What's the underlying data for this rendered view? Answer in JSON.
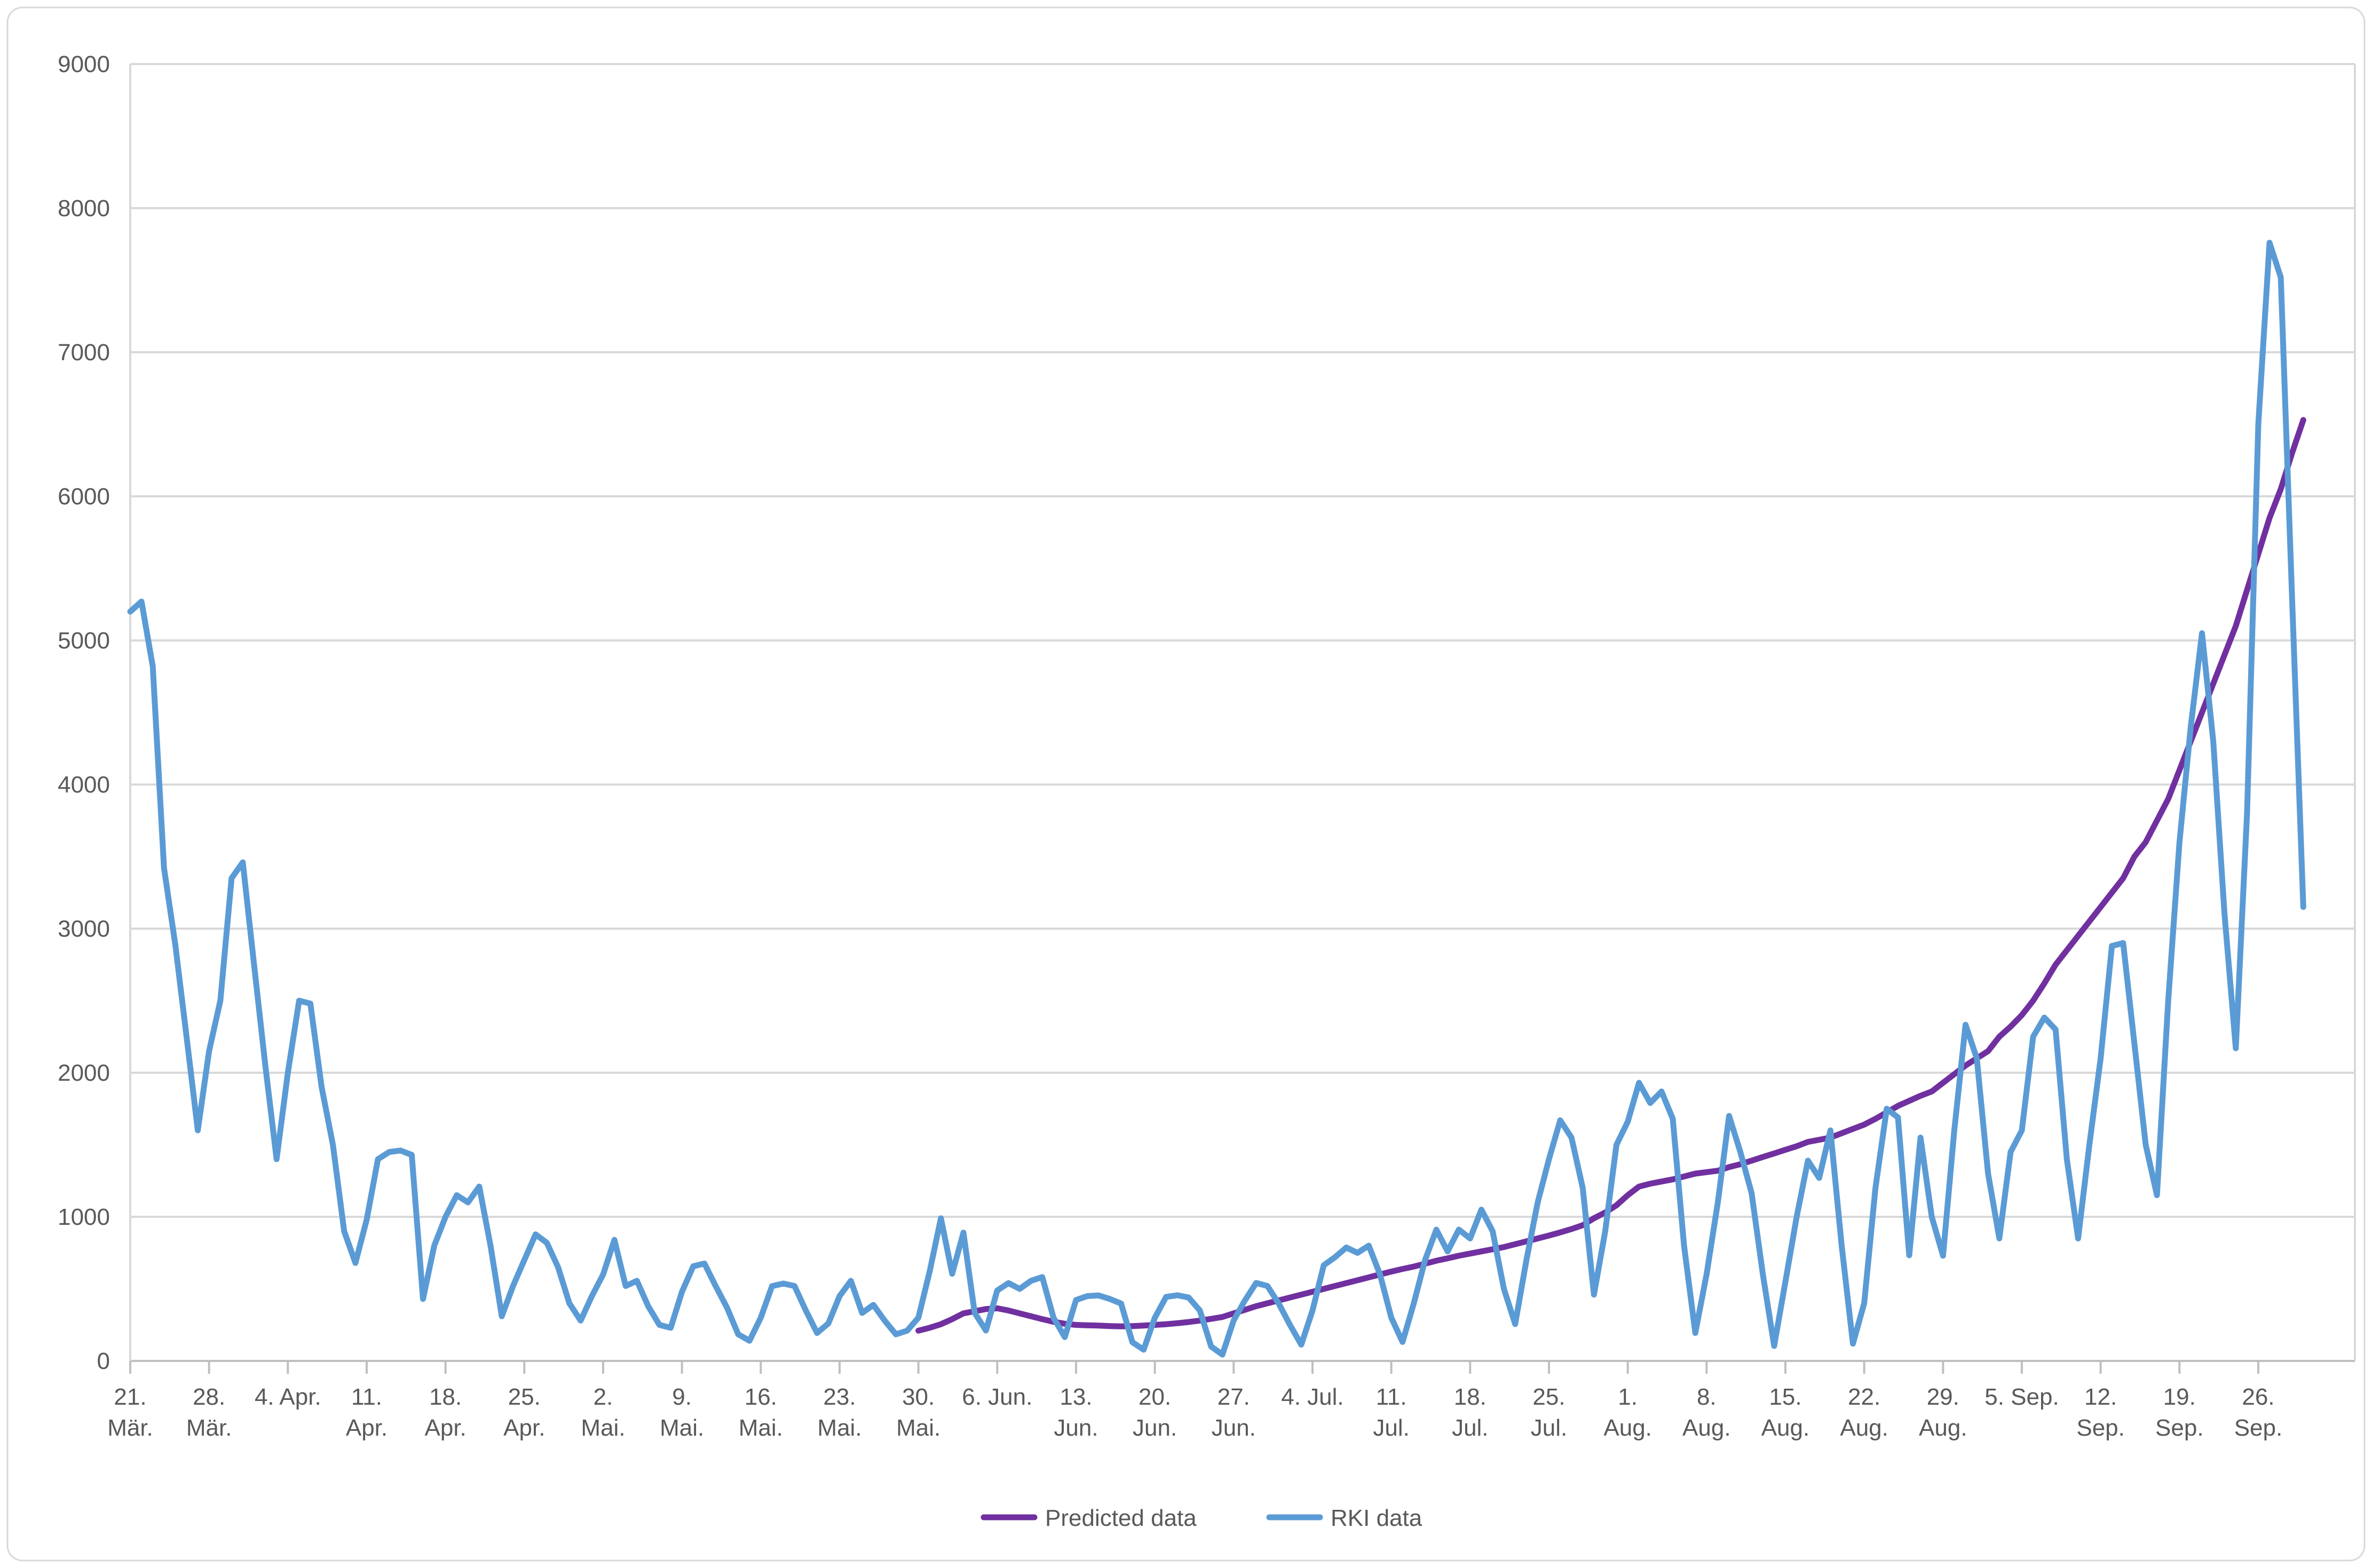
{
  "chart": {
    "background_color": "#FFFFFF",
    "border_color": "#D9D9D9",
    "gridline_color": "#D9D9D9",
    "axis_line_color": "#BFBFBF",
    "label_color": "#595959",
    "legend": [
      {
        "label": "Predicted data",
        "color": "#7030A0"
      },
      {
        "label": "RKI data",
        "color": "#5B9BD5"
      }
    ]
  },
  "chart_data": {
    "type": "line",
    "title": "",
    "xlabel": "",
    "ylabel": "",
    "ylim": [
      0,
      9000
    ],
    "y_ticks": [
      0,
      1000,
      2000,
      3000,
      4000,
      5000,
      6000,
      7000,
      8000,
      9000
    ],
    "grid": true,
    "legend_position": "bottom",
    "x_tick_interval_days": 7,
    "x_ticks": [
      {
        "l1": "21.",
        "l2": "Mär."
      },
      {
        "l1": "28.",
        "l2": "Mär."
      },
      {
        "l1": "4. Apr.",
        "l2": null
      },
      {
        "l1": "11.",
        "l2": "Apr."
      },
      {
        "l1": "18.",
        "l2": "Apr."
      },
      {
        "l1": "25.",
        "l2": "Apr."
      },
      {
        "l1": "2.",
        "l2": "Mai."
      },
      {
        "l1": "9.",
        "l2": "Mai."
      },
      {
        "l1": "16.",
        "l2": "Mai."
      },
      {
        "l1": "23.",
        "l2": "Mai."
      },
      {
        "l1": "30.",
        "l2": "Mai."
      },
      {
        "l1": "6. Jun.",
        "l2": null
      },
      {
        "l1": "13.",
        "l2": "Jun."
      },
      {
        "l1": "20.",
        "l2": "Jun."
      },
      {
        "l1": "27.",
        "l2": "Jun."
      },
      {
        "l1": "4. Jul.",
        "l2": null
      },
      {
        "l1": "11.",
        "l2": "Jul."
      },
      {
        "l1": "18.",
        "l2": "Jul."
      },
      {
        "l1": "25.",
        "l2": "Jul."
      },
      {
        "l1": "1.",
        "l2": "Aug."
      },
      {
        "l1": "8.",
        "l2": "Aug."
      },
      {
        "l1": "15.",
        "l2": "Aug."
      },
      {
        "l1": "22.",
        "l2": "Aug."
      },
      {
        "l1": "29.",
        "l2": "Aug."
      },
      {
        "l1": "5. Sep.",
        "l2": null
      },
      {
        "l1": "12.",
        "l2": "Sep."
      },
      {
        "l1": "19.",
        "l2": "Sep."
      },
      {
        "l1": "26.",
        "l2": "Sep."
      }
    ],
    "series": [
      {
        "name": "Predicted data",
        "color": "#7030A0",
        "values": [
          null,
          null,
          null,
          null,
          null,
          null,
          null,
          null,
          null,
          null,
          null,
          null,
          null,
          null,
          null,
          null,
          null,
          null,
          null,
          null,
          null,
          null,
          null,
          null,
          null,
          null,
          null,
          null,
          null,
          null,
          null,
          null,
          null,
          null,
          null,
          null,
          null,
          null,
          null,
          null,
          null,
          null,
          null,
          null,
          null,
          null,
          null,
          null,
          null,
          null,
          null,
          null,
          null,
          null,
          null,
          null,
          null,
          null,
          null,
          null,
          null,
          null,
          null,
          null,
          null,
          null,
          null,
          null,
          null,
          null,
          210,
          230,
          255,
          290,
          330,
          345,
          360,
          365,
          350,
          330,
          310,
          290,
          272,
          258,
          250,
          247,
          245,
          242,
          240,
          242,
          245,
          250,
          255,
          262,
          270,
          280,
          292,
          305,
          330,
          355,
          380,
          400,
          420,
          440,
          460,
          480,
          500,
          520,
          540,
          560,
          580,
          600,
          620,
          638,
          655,
          675,
          695,
          712,
          730,
          745,
          760,
          775,
          790,
          810,
          830,
          850,
          870,
          892,
          915,
          942,
          990,
          1030,
          1080,
          1150,
          1210,
          1230,
          1245,
          1260,
          1280,
          1300,
          1310,
          1320,
          1345,
          1365,
          1390,
          1415,
          1440,
          1465,
          1490,
          1520,
          1535,
          1550,
          1580,
          1610,
          1640,
          1680,
          1725,
          1770,
          1805,
          1840,
          1870,
          1930,
          1990,
          2050,
          2100,
          2150,
          2250,
          2320,
          2400,
          2500,
          2620,
          2750,
          2850,
          2950,
          3050,
          3150,
          3250,
          3350,
          3500,
          3600,
          3750,
          3900,
          4100,
          4300,
          4500,
          4700,
          4900,
          5100,
          5350,
          5600,
          5850,
          6050,
          6300,
          6530
        ]
      },
      {
        "name": "RKI data",
        "color": "#5B9BD5",
        "values": [
          5200,
          5270,
          4820,
          3420,
          2890,
          2250,
          1600,
          2150,
          2500,
          3350,
          3460,
          2750,
          2050,
          1400,
          2000,
          2500,
          2480,
          1900,
          1500,
          900,
          680,
          980,
          1400,
          1450,
          1460,
          1430,
          430,
          800,
          1000,
          1150,
          1100,
          1210,
          800,
          310,
          520,
          700,
          878,
          820,
          650,
          400,
          280,
          450,
          600,
          840,
          520,
          556,
          380,
          250,
          230,
          480,
          657,
          676,
          519,
          370,
          185,
          140,
          300,
          519,
          537,
          520,
          350,
          194,
          260,
          450,
          556,
          333,
          389,
          280,
          185,
          210,
          300,
          620,
          990,
          605,
          890,
          333,
          211,
          489,
          540,
          500,
          556,
          582,
          300,
          165,
          423,
          450,
          455,
          430,
          398,
          130,
          78,
          300,
          444,
          456,
          440,
          350,
          100,
          44,
          281,
          420,
          541,
          520,
          398,
          250,
          113,
          350,
          664,
          720,
          787,
          750,
          800,
          600,
          300,
          132,
          400,
          700,
          911,
          760,
          911,
          850,
          1050,
          900,
          500,
          256,
          700,
          1100,
          1400,
          1670,
          1550,
          1200,
          460,
          900,
          1500,
          1660,
          1930,
          1790,
          1870,
          1680,
          800,
          194,
          600,
          1100,
          1700,
          1450,
          1164,
          600,
          104,
          550,
          1000,
          1390,
          1270,
          1600,
          800,
          120,
          400,
          1200,
          1750,
          1690,
          733,
          1550,
          1000,
          730,
          1600,
          2333,
          2100,
          1300,
          850,
          1450,
          1600,
          2250,
          2383,
          2300,
          1400,
          850,
          1500,
          2100,
          2880,
          2900,
          2200,
          1500,
          1150,
          2500,
          3600,
          4400,
          5050,
          4300,
          3100,
          2170,
          3800,
          6500,
          7760,
          7520,
          5300,
          3150
        ]
      }
    ]
  }
}
